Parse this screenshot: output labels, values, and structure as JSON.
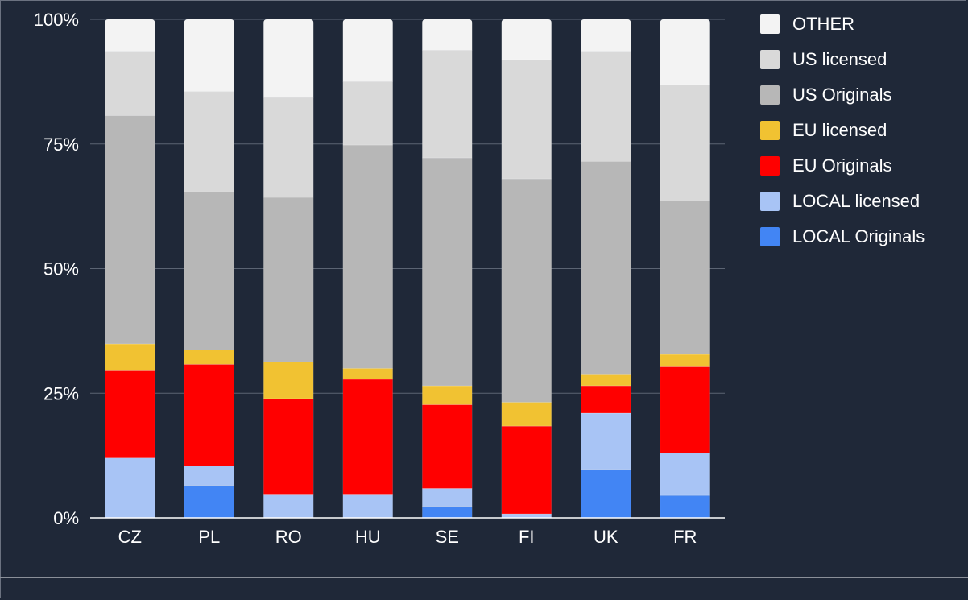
{
  "chart_data": {
    "type": "bar",
    "stacked": true,
    "percent": true,
    "categories": [
      "CZ",
      "PL",
      "RO",
      "HU",
      "SE",
      "FI",
      "UK",
      "FR"
    ],
    "y_ticks": [
      "0%",
      "25%",
      "50%",
      "75%",
      "100%"
    ],
    "ylim": [
      0,
      100
    ],
    "legend_position": "right",
    "series": [
      {
        "name": "LOCAL Originals",
        "color": "#4285f4",
        "values": [
          0,
          6.5,
          0,
          0,
          2.3,
          0,
          9.7,
          4.5
        ]
      },
      {
        "name": "LOCAL licensed",
        "color": "#a8c4f5",
        "values": [
          12,
          3.9,
          4.6,
          4.6,
          3.6,
          0.8,
          11.3,
          8.5
        ]
      },
      {
        "name": "EU Originals",
        "color": "#ff0000",
        "values": [
          17.5,
          20.4,
          19.3,
          23.2,
          16.8,
          17.6,
          5.5,
          17.3
        ]
      },
      {
        "name": "EU licensed",
        "color": "#f1c232",
        "values": [
          5.4,
          2.9,
          7.4,
          2.2,
          3.8,
          4.8,
          2.2,
          2.5
        ]
      },
      {
        "name": "US Originals",
        "color": "#b7b7b7",
        "values": [
          45.8,
          31.7,
          33.0,
          44.8,
          45.7,
          44.8,
          42.8,
          30.8
        ]
      },
      {
        "name": "US licensed",
        "color": "#d9d9d9",
        "values": [
          12.9,
          20.1,
          20.0,
          12.7,
          21.6,
          23.9,
          22.1,
          23.3
        ]
      },
      {
        "name": "OTHER",
        "color": "#f3f3f3",
        "values": [
          6.4,
          14.5,
          15.7,
          12.5,
          6.2,
          8.1,
          6.4,
          13.1
        ]
      }
    ]
  },
  "legend": [
    {
      "name": "OTHER",
      "color": "#f3f3f3"
    },
    {
      "name": "US licensed",
      "color": "#d9d9d9"
    },
    {
      "name": "US Originals",
      "color": "#b7b7b7"
    },
    {
      "name": "EU licensed",
      "color": "#f1c232"
    },
    {
      "name": "EU Originals",
      "color": "#ff0000"
    },
    {
      "name": "LOCAL licensed",
      "color": "#a8c4f5"
    },
    {
      "name": "LOCAL Originals",
      "color": "#4285f4"
    }
  ]
}
